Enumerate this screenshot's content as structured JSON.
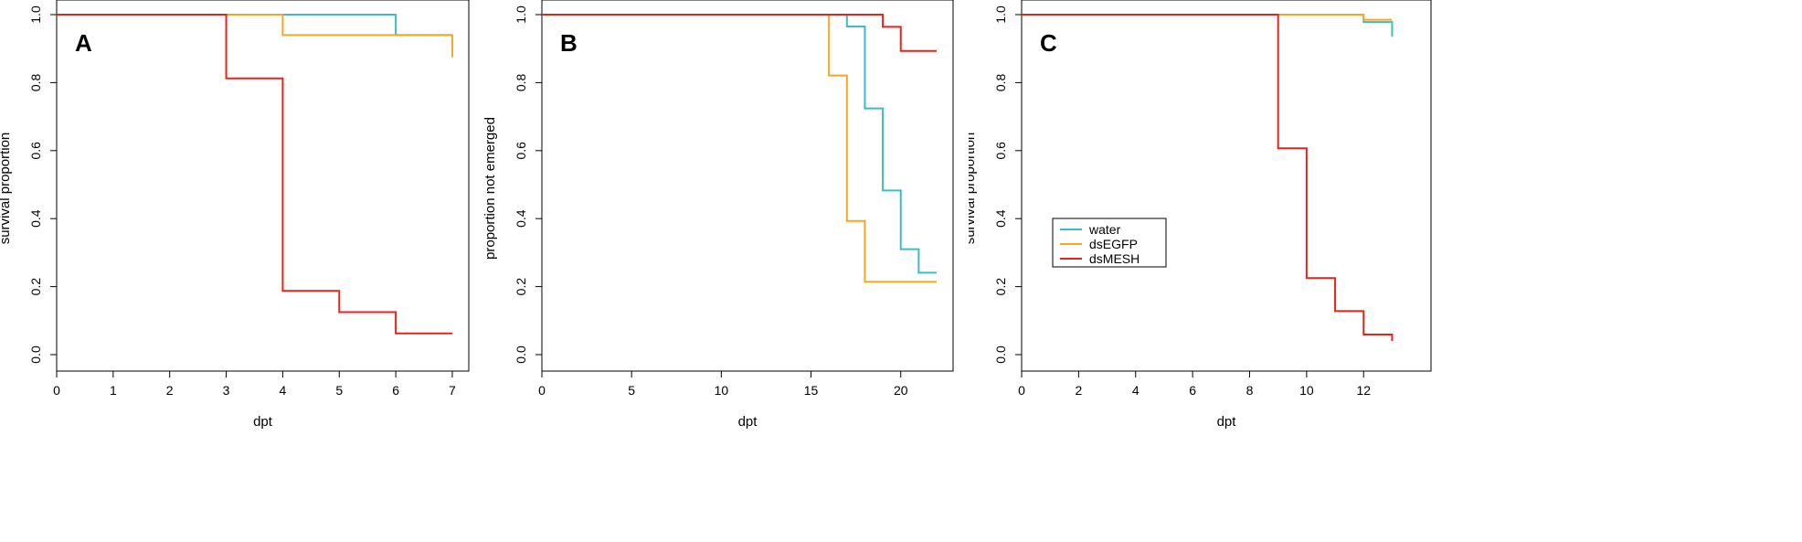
{
  "legend": {
    "entries": [
      {
        "label": "water",
        "color": "#3bbcc8"
      },
      {
        "label": "dsEGFP",
        "color": "#f5a623"
      },
      {
        "label": "dsMESH",
        "color": "#e8231a"
      }
    ]
  },
  "chart_data": [
    {
      "type": "line",
      "panel_label": "A",
      "title": "",
      "xlabel": "dpt",
      "ylabel": "survival proportion",
      "xlim": [
        0,
        7
      ],
      "ylim": [
        0,
        1
      ],
      "xticks": [
        0,
        1,
        2,
        3,
        4,
        5,
        6,
        7
      ],
      "yticks": [
        0.0,
        0.2,
        0.4,
        0.6,
        0.8,
        1.0
      ],
      "ytick_labels": [
        "0.0",
        "0.2",
        "0.4",
        "0.6",
        "0.8",
        "1.0"
      ],
      "step": true,
      "grid": false,
      "series": [
        {
          "name": "water",
          "color": "#3bbcc8",
          "x": [
            0,
            6,
            7
          ],
          "y": [
            1.0,
            0.94,
            0.94
          ]
        },
        {
          "name": "dsEGFP",
          "color": "#f5a623",
          "x": [
            0,
            4,
            7,
            7
          ],
          "y": [
            1.0,
            0.94,
            0.94,
            0.875
          ]
        },
        {
          "name": "dsMESH",
          "color": "#e8231a",
          "x": [
            0,
            3,
            4,
            5,
            6,
            7
          ],
          "y": [
            1.0,
            0.8125,
            0.1875,
            0.125,
            0.0625,
            0.0625
          ]
        }
      ]
    },
    {
      "type": "line",
      "panel_label": "B",
      "title": "",
      "xlabel": "dpt",
      "ylabel": "proportion not emerged",
      "xlim": [
        0,
        22
      ],
      "ylim": [
        0,
        1
      ],
      "xticks": [
        0,
        5,
        10,
        15,
        20
      ],
      "yticks": [
        0.0,
        0.2,
        0.4,
        0.6,
        0.8,
        1.0
      ],
      "ytick_labels": [
        "0.0",
        "0.2",
        "0.4",
        "0.6",
        "0.8",
        "1.0"
      ],
      "step": true,
      "grid": false,
      "series": [
        {
          "name": "water",
          "color": "#3bbcc8",
          "x": [
            0,
            17,
            18,
            19,
            20,
            21,
            22
          ],
          "y": [
            1.0,
            0.965,
            0.724,
            0.483,
            0.31,
            0.241,
            0.241
          ]
        },
        {
          "name": "dsEGFP",
          "color": "#f5a623",
          "x": [
            0,
            16,
            17,
            18,
            22
          ],
          "y": [
            1.0,
            0.821,
            0.393,
            0.214,
            0.214
          ]
        },
        {
          "name": "dsMESH",
          "color": "#e8231a",
          "x": [
            0,
            19,
            20,
            22
          ],
          "y": [
            1.0,
            0.964,
            0.893,
            0.893
          ]
        }
      ]
    },
    {
      "type": "line",
      "panel_label": "C",
      "title": "",
      "xlabel": "dpt",
      "ylabel": "survival proportion",
      "xlim": [
        0,
        13
      ],
      "ylim": [
        0,
        1
      ],
      "xticks": [
        0,
        2,
        4,
        6,
        8,
        10,
        12
      ],
      "yticks": [
        0.0,
        0.2,
        0.4,
        0.6,
        0.8,
        1.0
      ],
      "ytick_labels": [
        "0.0",
        "0.2",
        "0.4",
        "0.6",
        "0.8",
        "1.0"
      ],
      "step": true,
      "grid": false,
      "legend_position": "middle-left",
      "series": [
        {
          "name": "water",
          "color": "#3bbcc8",
          "x": [
            0,
            12,
            13,
            13
          ],
          "y": [
            1.0,
            0.978,
            0.978,
            0.935
          ]
        },
        {
          "name": "dsEGFP",
          "color": "#f5a623",
          "x": [
            0,
            12,
            13,
            13
          ],
          "y": [
            1.0,
            0.985,
            0.985,
            0.985
          ]
        },
        {
          "name": "dsMESH",
          "color": "#e8231a",
          "x": [
            0,
            9,
            10,
            11,
            12,
            13,
            13
          ],
          "y": [
            1.0,
            0.607,
            0.225,
            0.128,
            0.059,
            0.059,
            0.04
          ]
        }
      ]
    }
  ]
}
